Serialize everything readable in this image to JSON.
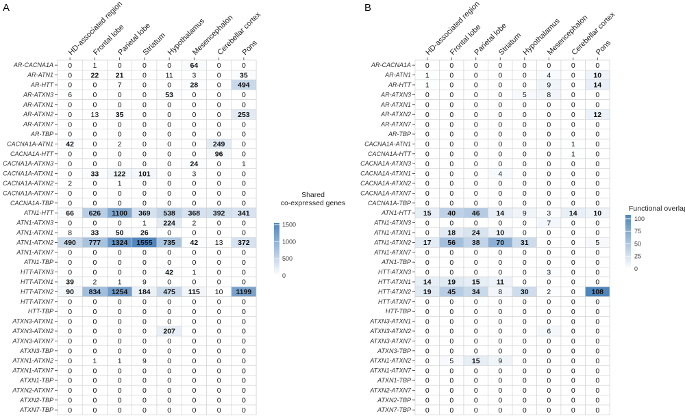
{
  "chart_data": [
    {
      "type": "heatmap",
      "panel_label": "A",
      "legend_title": [
        "Shared",
        "co-expressed genes"
      ],
      "legend_ticks": [
        1500,
        1000,
        500,
        0
      ],
      "color_range": [
        0,
        1555
      ],
      "bold_threshold": 20,
      "columns": [
        "HD-associated region",
        "Frontal lobe",
        "Parietal lobe",
        "Striatum",
        "Hypothalamus",
        "Mesencephalon",
        "Cerebellar cortex",
        "Pons"
      ],
      "rows": [
        "AR-CACNA1A",
        "AR-ATN1",
        "AR-HTT",
        "AR-ATXN3",
        "AR-ATXN1",
        "AR-ATXN2",
        "AR-ATXN7",
        "AR-TBP",
        "CACNA1A-ATN1",
        "CACNA1A-HTT",
        "CACNA1A-ATXN3",
        "CACNA1A-ATXN1",
        "CACNA1A-ATXN2",
        "CACNA1A-ATXN7",
        "CACNA1A-TBP",
        "ATN1-HTT",
        "ATN1-ATXN3",
        "ATN1-ATXN1",
        "ATN1-ATXN2",
        "ATN1-ATXN7",
        "ATN1-TBP",
        "HTT-ATXN3",
        "HTT-ATXN1",
        "HTT-ATXN2",
        "HTT-ATXN7",
        "HTT-TBP",
        "ATXN3-ATXN1",
        "ATXN3-ATXN2",
        "ATXN3-ATXN7",
        "ATXN3-TBP",
        "ATXN1-ATXN2",
        "ATXN1-ATXN7",
        "ATXN1-TBP",
        "ATXN2-ATXN7",
        "ATXN2-TBP",
        "ATXN7-TBP"
      ],
      "values": [
        [
          0,
          1,
          0,
          0,
          0,
          64,
          0,
          0
        ],
        [
          0,
          22,
          21,
          0,
          11,
          3,
          0,
          35
        ],
        [
          0,
          0,
          7,
          0,
          0,
          28,
          0,
          494
        ],
        [
          6,
          0,
          0,
          0,
          53,
          0,
          0,
          0
        ],
        [
          0,
          0,
          0,
          0,
          0,
          0,
          0,
          0
        ],
        [
          0,
          13,
          35,
          0,
          0,
          0,
          0,
          253
        ],
        [
          0,
          0,
          0,
          0,
          0,
          0,
          0,
          0
        ],
        [
          0,
          0,
          0,
          0,
          0,
          0,
          0,
          0
        ],
        [
          42,
          0,
          2,
          0,
          0,
          0,
          249,
          0
        ],
        [
          0,
          0,
          0,
          0,
          0,
          0,
          96,
          0
        ],
        [
          0,
          0,
          0,
          0,
          0,
          24,
          0,
          1
        ],
        [
          0,
          33,
          122,
          101,
          0,
          3,
          0,
          0
        ],
        [
          2,
          0,
          1,
          0,
          0,
          0,
          0,
          0
        ],
        [
          0,
          0,
          0,
          0,
          0,
          0,
          0,
          0
        ],
        [
          0,
          0,
          0,
          0,
          0,
          0,
          0,
          0
        ],
        [
          66,
          626,
          1100,
          369,
          538,
          368,
          392,
          341
        ],
        [
          0,
          0,
          0,
          1,
          224,
          2,
          0,
          0
        ],
        [
          8,
          33,
          50,
          26,
          0,
          0,
          0,
          0
        ],
        [
          490,
          777,
          1324,
          1555,
          735,
          42,
          13,
          372
        ],
        [
          0,
          0,
          0,
          0,
          0,
          0,
          0,
          0
        ],
        [
          0,
          0,
          0,
          0,
          0,
          0,
          0,
          0
        ],
        [
          0,
          0,
          0,
          0,
          42,
          1,
          0,
          0
        ],
        [
          39,
          2,
          1,
          9,
          0,
          0,
          0,
          0
        ],
        [
          90,
          834,
          1254,
          184,
          475,
          115,
          10,
          1199
        ],
        [
          0,
          0,
          0,
          0,
          0,
          0,
          0,
          0
        ],
        [
          0,
          0,
          0,
          0,
          0,
          0,
          0,
          0
        ],
        [
          0,
          0,
          0,
          0,
          0,
          0,
          0,
          0
        ],
        [
          0,
          0,
          0,
          0,
          207,
          0,
          0,
          0
        ],
        [
          0,
          0,
          0,
          0,
          0,
          0,
          0,
          0
        ],
        [
          0,
          0,
          0,
          0,
          0,
          0,
          0,
          0
        ],
        [
          0,
          1,
          1,
          9,
          0,
          0,
          0,
          0
        ],
        [
          0,
          0,
          0,
          0,
          0,
          0,
          0,
          0
        ],
        [
          0,
          0,
          0,
          0,
          0,
          0,
          0,
          0
        ],
        [
          0,
          0,
          0,
          0,
          0,
          0,
          0,
          0
        ],
        [
          0,
          0,
          0,
          0,
          0,
          0,
          0,
          0
        ],
        [
          0,
          0,
          0,
          0,
          0,
          0,
          0,
          0
        ]
      ]
    },
    {
      "type": "heatmap",
      "panel_label": "B",
      "legend_title": [
        "Functional overlap"
      ],
      "legend_ticks": [
        100,
        75,
        50,
        25,
        0
      ],
      "color_range": [
        0,
        108
      ],
      "bold_threshold": 10,
      "columns": [
        "HD-associated region",
        "Frontal lobe",
        "Parietal lobe",
        "Striatum",
        "Hypothalamus",
        "Mesencephalon",
        "Cerebellar cortex",
        "Pons"
      ],
      "rows": [
        "AR-CACNA1A",
        "AR-ATN1",
        "AR-HTT",
        "AR-ATXN3",
        "AR-ATXN1",
        "AR-ATXN2",
        "AR-ATXN7",
        "AR-TBP",
        "CACNA1A-ATN1",
        "CACNA1A-HTT",
        "CACNA1A-ATXN3",
        "CACNA1A-ATXN1",
        "CACNA1A-ATXN2",
        "CACNA1A-ATXN7",
        "CACNA1A-TBP",
        "ATN1-HTT",
        "ATN1-ATXN3",
        "ATN1-ATXN1",
        "ATN1-ATXN2",
        "ATN1-ATXN7",
        "ATN1-TBP",
        "HTT-ATXN3",
        "HTT-ATXN1",
        "HTT-ATXN2",
        "HTT-ATXN7",
        "HTT-TBP",
        "ATXN3-ATXN1",
        "ATXN3-ATXN2",
        "ATXN3-ATXN7",
        "ATXN3-TBP",
        "ATXN1-ATXN2",
        "ATXN1-ATXN7",
        "ATXN1-TBP",
        "ATXN2-ATXN7",
        "ATXN2-TBP",
        "ATXN7-TBP"
      ],
      "values": [
        [
          0,
          0,
          0,
          0,
          0,
          0,
          0,
          0
        ],
        [
          1,
          0,
          0,
          0,
          0,
          4,
          0,
          10
        ],
        [
          1,
          0,
          0,
          0,
          0,
          9,
          0,
          14
        ],
        [
          0,
          0,
          0,
          0,
          5,
          8,
          0,
          0
        ],
        [
          0,
          0,
          0,
          0,
          0,
          0,
          0,
          0
        ],
        [
          0,
          0,
          0,
          0,
          0,
          0,
          0,
          12
        ],
        [
          0,
          0,
          0,
          0,
          0,
          0,
          0,
          0
        ],
        [
          0,
          0,
          0,
          0,
          0,
          0,
          0,
          0
        ],
        [
          0,
          0,
          0,
          0,
          0,
          0,
          1,
          0
        ],
        [
          0,
          0,
          0,
          0,
          0,
          0,
          1,
          0
        ],
        [
          0,
          0,
          0,
          0,
          0,
          0,
          0,
          0
        ],
        [
          0,
          0,
          0,
          4,
          0,
          0,
          0,
          0
        ],
        [
          0,
          0,
          0,
          0,
          0,
          0,
          0,
          0
        ],
        [
          0,
          0,
          0,
          0,
          0,
          0,
          0,
          0
        ],
        [
          0,
          0,
          0,
          0,
          0,
          0,
          0,
          0
        ],
        [
          15,
          40,
          46,
          14,
          9,
          3,
          14,
          10
        ],
        [
          0,
          0,
          0,
          0,
          0,
          7,
          0,
          0
        ],
        [
          0,
          18,
          24,
          10,
          0,
          0,
          0,
          0
        ],
        [
          17,
          56,
          38,
          70,
          31,
          0,
          0,
          5
        ],
        [
          0,
          0,
          0,
          0,
          0,
          0,
          0,
          0
        ],
        [
          0,
          0,
          0,
          0,
          0,
          0,
          0,
          0
        ],
        [
          0,
          0,
          0,
          0,
          0,
          3,
          0,
          0
        ],
        [
          14,
          19,
          15,
          11,
          0,
          0,
          0,
          0
        ],
        [
          19,
          45,
          34,
          8,
          30,
          2,
          0,
          108
        ],
        [
          0,
          0,
          0,
          0,
          0,
          0,
          0,
          0
        ],
        [
          0,
          0,
          0,
          0,
          0,
          0,
          0,
          0
        ],
        [
          0,
          0,
          0,
          0,
          0,
          0,
          0,
          0
        ],
        [
          0,
          0,
          0,
          0,
          0,
          6,
          0,
          0
        ],
        [
          0,
          0,
          0,
          0,
          0,
          0,
          0,
          0
        ],
        [
          0,
          0,
          0,
          0,
          0,
          0,
          0,
          0
        ],
        [
          0,
          5,
          15,
          9,
          0,
          0,
          0,
          0
        ],
        [
          0,
          0,
          0,
          0,
          0,
          0,
          0,
          0
        ],
        [
          0,
          0,
          0,
          0,
          0,
          0,
          0,
          0
        ],
        [
          0,
          0,
          0,
          0,
          0,
          0,
          0,
          0
        ],
        [
          0,
          0,
          0,
          0,
          0,
          0,
          0,
          0
        ],
        [
          0,
          0,
          0,
          0,
          0,
          0,
          0,
          0
        ]
      ]
    }
  ]
}
